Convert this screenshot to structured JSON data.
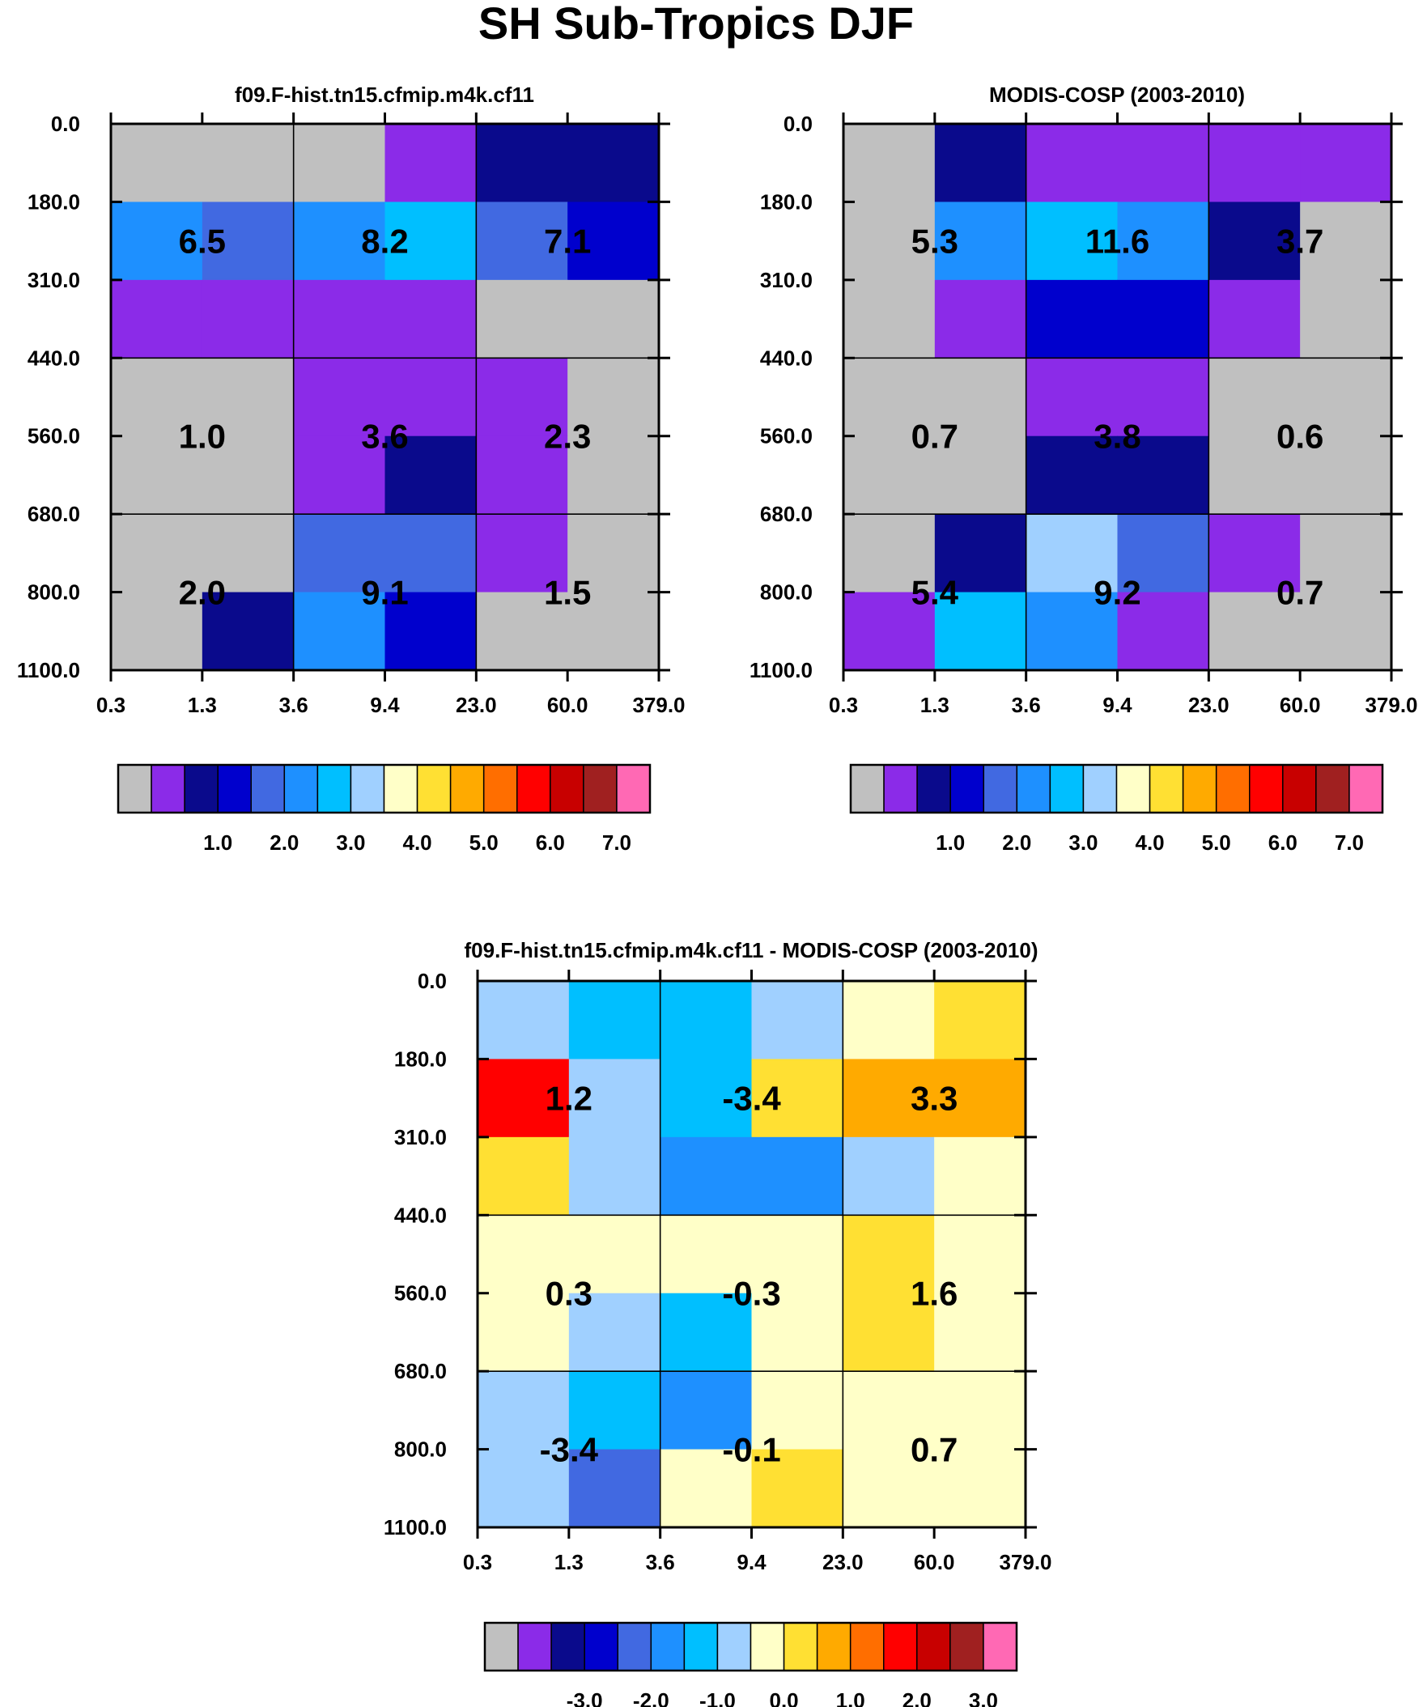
{
  "title": "SH Sub-Tropics DJF",
  "colors": {
    "palette": [
      "#c0c0c0",
      "#8b2be8",
      "#0a0a8c",
      "#0000cd",
      "#4169e1",
      "#1e90ff",
      "#00bfff",
      "#a0d0ff",
      "#ffffc8",
      "#ffe033",
      "#ffaa00",
      "#ff6e00",
      "#ff0000",
      "#c80000",
      "#a02020",
      "#ff69b4"
    ]
  },
  "chart_data": [
    {
      "type": "heatmap",
      "title": "f09.F-hist.tn15.cfmip.m4k.cf11",
      "x_ticks": [
        "0.3",
        "1.3",
        "3.6",
        "9.4",
        "23.0",
        "60.0",
        "379.0"
      ],
      "y_ticks": [
        "0.0",
        "180.0",
        "310.0",
        "440.0",
        "560.0",
        "680.0",
        "800.0",
        "1100.0"
      ],
      "cells_color_index": [
        [
          0,
          0,
          0,
          1,
          2,
          2
        ],
        [
          5,
          4,
          5,
          6,
          4,
          3
        ],
        [
          1,
          1,
          1,
          1,
          0,
          0
        ],
        [
          0,
          0,
          1,
          1,
          1,
          0
        ],
        [
          0,
          0,
          1,
          2,
          1,
          0
        ],
        [
          0,
          0,
          4,
          4,
          1,
          0
        ],
        [
          0,
          2,
          5,
          3,
          0,
          0
        ]
      ],
      "annotations": [
        [
          "6.5",
          "8.2",
          "7.1"
        ],
        [
          "1.0",
          "3.6",
          "2.3"
        ],
        [
          "2.0",
          "9.1",
          "1.5"
        ]
      ],
      "colorbar_labels": [
        "1.0",
        "2.0",
        "3.0",
        "4.0",
        "5.0",
        "6.0",
        "7.0"
      ]
    },
    {
      "type": "heatmap",
      "title": "MODIS-COSP (2003-2010)",
      "x_ticks": [
        "0.3",
        "1.3",
        "3.6",
        "9.4",
        "23.0",
        "60.0",
        "379.0"
      ],
      "y_ticks": [
        "0.0",
        "180.0",
        "310.0",
        "440.0",
        "560.0",
        "680.0",
        "800.0",
        "1100.0"
      ],
      "cells_color_index": [
        [
          0,
          2,
          1,
          1,
          1,
          1
        ],
        [
          0,
          5,
          6,
          5,
          2,
          0
        ],
        [
          0,
          1,
          3,
          3,
          1,
          0
        ],
        [
          0,
          0,
          1,
          1,
          0,
          0
        ],
        [
          0,
          0,
          2,
          2,
          0,
          0
        ],
        [
          0,
          2,
          7,
          4,
          1,
          0
        ],
        [
          1,
          6,
          5,
          1,
          0,
          0
        ]
      ],
      "annotations": [
        [
          "5.3",
          "11.6",
          "3.7"
        ],
        [
          "0.7",
          "3.8",
          "0.6"
        ],
        [
          "5.4",
          "9.2",
          "0.7"
        ]
      ],
      "colorbar_labels": [
        "1.0",
        "2.0",
        "3.0",
        "4.0",
        "5.0",
        "6.0",
        "7.0"
      ]
    },
    {
      "type": "heatmap",
      "title": "f09.F-hist.tn15.cfmip.m4k.cf11 - MODIS-COSP (2003-2010)",
      "x_ticks": [
        "0.3",
        "1.3",
        "3.6",
        "9.4",
        "23.0",
        "60.0",
        "379.0"
      ],
      "y_ticks": [
        "0.0",
        "180.0",
        "310.0",
        "440.0",
        "560.0",
        "680.0",
        "800.0",
        "1100.0"
      ],
      "cells_color_index": [
        [
          7,
          6,
          6,
          7,
          8,
          9
        ],
        [
          12,
          7,
          6,
          9,
          10,
          10
        ],
        [
          9,
          7,
          5,
          5,
          7,
          8
        ],
        [
          8,
          8,
          8,
          8,
          9,
          8
        ],
        [
          8,
          7,
          6,
          8,
          9,
          8
        ],
        [
          7,
          6,
          5,
          8,
          8,
          8
        ],
        [
          7,
          4,
          8,
          9,
          8,
          8
        ]
      ],
      "annotations": [
        [
          "1.2",
          "-3.4",
          "3.3"
        ],
        [
          "0.3",
          "-0.3",
          "1.6"
        ],
        [
          "-3.4",
          "-0.1",
          "0.7"
        ]
      ],
      "colorbar_labels": [
        "-3.0",
        "-2.0",
        "-1.0",
        "0.0",
        "1.0",
        "2.0",
        "3.0"
      ]
    }
  ]
}
